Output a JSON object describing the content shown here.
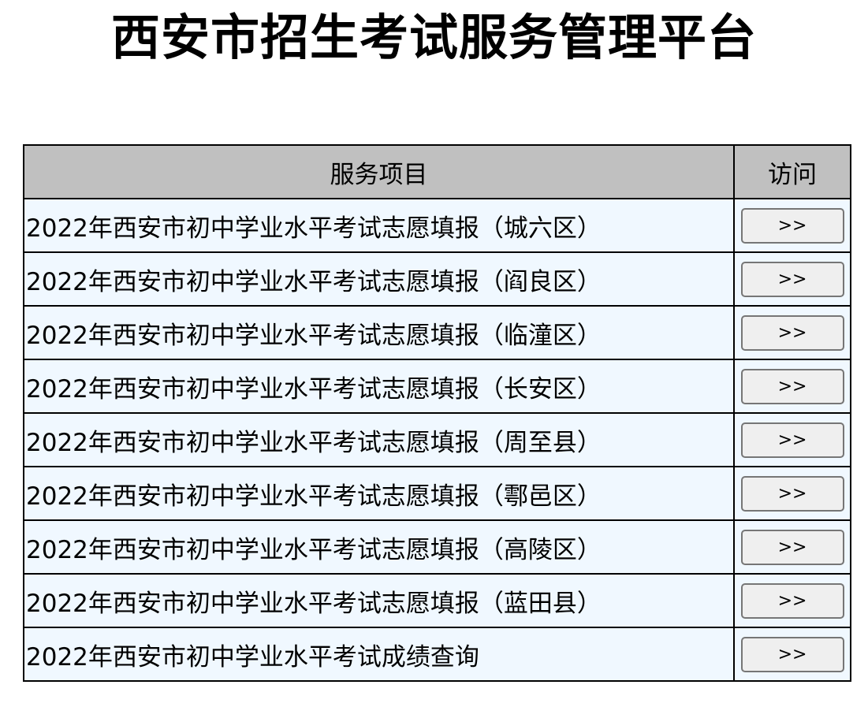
{
  "title": "西安市招生考试服务管理平台",
  "table": {
    "headers": [
      "服务项目",
      "访问"
    ],
    "button_label": ">>",
    "rows": [
      "2022年西安市初中学业水平考试志愿填报（城六区）",
      "2022年西安市初中学业水平考试志愿填报（阎良区）",
      "2022年西安市初中学业水平考试志愿填报（临潼区）",
      "2022年西安市初中学业水平考试志愿填报（长安区）",
      "2022年西安市初中学业水平考试志愿填报（周至县）",
      "2022年西安市初中学业水平考试志愿填报（鄠邑区）",
      "2022年西安市初中学业水平考试志愿填报（高陵区）",
      "2022年西安市初中学业水平考试志愿填报（蓝田县）",
      "2022年西安市初中学业水平考试成绩查询"
    ]
  },
  "colors": {
    "header_bg": "#c0c0c0",
    "row_bg": "#f0f8ff",
    "button_bg": "#efefef"
  }
}
